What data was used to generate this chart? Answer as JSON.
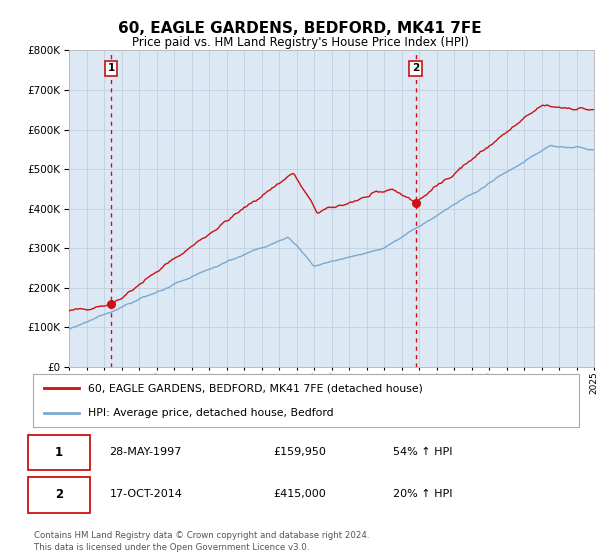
{
  "title": "60, EAGLE GARDENS, BEDFORD, MK41 7FE",
  "subtitle": "Price paid vs. HM Land Registry's House Price Index (HPI)",
  "legend_line1": "60, EAGLE GARDENS, BEDFORD, MK41 7FE (detached house)",
  "legend_line2": "HPI: Average price, detached house, Bedford",
  "sale1_date": "28-MAY-1997",
  "sale1_price": 159950,
  "sale1_hpi": "54% ↑ HPI",
  "sale2_date": "17-OCT-2014",
  "sale2_price": 415000,
  "sale2_hpi": "20% ↑ HPI",
  "sale1_year": 1997.4,
  "sale2_year": 2014.8,
  "footer1": "Contains HM Land Registry data © Crown copyright and database right 2024.",
  "footer2": "This data is licensed under the Open Government Licence v3.0.",
  "hpi_color": "#7aa8d2",
  "price_color": "#cc1111",
  "bg_color": "#dce9f5",
  "grid_color": "#c0d0e0",
  "ylim_max": 800000,
  "ylim_min": 0,
  "xlim_min": 1995,
  "xlim_max": 2025
}
